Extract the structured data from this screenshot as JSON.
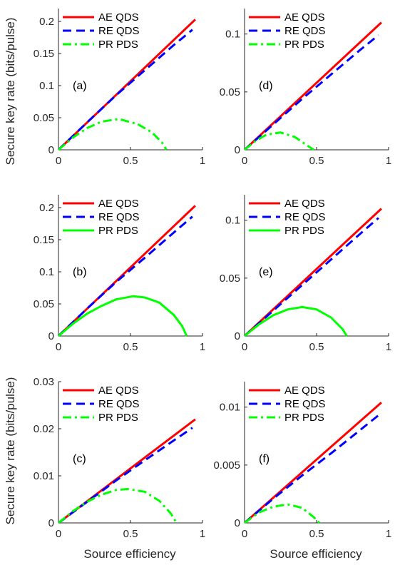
{
  "ylabel": "Secure key rate (bits/pulse)",
  "xlabel": "Source efficiency",
  "legend": [
    "AE QDS",
    "RE QDS",
    "PR PDS"
  ],
  "colors": {
    "AE QDS": "#ff0000",
    "RE QDS": "#0000ff",
    "PR PDS": "#00ff00"
  },
  "chart_data": [
    {
      "type": "line",
      "panel_label": "(a)",
      "xlim": [
        0,
        1
      ],
      "ylim": [
        0,
        0.22
      ],
      "xticks": [
        "0",
        "0.5",
        "1"
      ],
      "yticks": [
        "0",
        "0.05",
        "0.1",
        "0.15",
        "0.2"
      ],
      "yticks_values": [
        0,
        0.05,
        0.1,
        0.15,
        0.2
      ],
      "legend_position": "top-left",
      "series": [
        {
          "name": "AE QDS",
          "style": "solid",
          "x": [
            0,
            0.95
          ],
          "y": [
            0,
            0.203
          ]
        },
        {
          "name": "RE QDS",
          "style": "dashed",
          "x": [
            0,
            0.2,
            0.4,
            0.6,
            0.8,
            0.93
          ],
          "y": [
            0,
            0.043,
            0.085,
            0.124,
            0.163,
            0.187
          ]
        },
        {
          "name": "PR PDS",
          "style": "dashdot",
          "x": [
            0,
            0.1,
            0.2,
            0.3,
            0.42,
            0.55,
            0.65,
            0.72,
            0.75
          ],
          "y": [
            0,
            0.019,
            0.034,
            0.044,
            0.048,
            0.04,
            0.027,
            0.011,
            0
          ]
        }
      ]
    },
    {
      "type": "line",
      "panel_label": "(d)",
      "xlim": [
        0,
        1
      ],
      "ylim": [
        0,
        0.122
      ],
      "xticks": [
        "0",
        "0.5",
        "1"
      ],
      "yticks": [
        "0",
        "0.05",
        "0.1"
      ],
      "yticks_values": [
        0,
        0.05,
        0.1
      ],
      "legend_position": "top-left",
      "series": [
        {
          "name": "AE QDS",
          "style": "solid",
          "x": [
            0,
            0.95
          ],
          "y": [
            0,
            0.11
          ]
        },
        {
          "name": "RE QDS",
          "style": "dashed",
          "x": [
            0,
            0.2,
            0.4,
            0.6,
            0.8,
            0.93
          ],
          "y": [
            0,
            0.022,
            0.044,
            0.065,
            0.086,
            0.099
          ]
        },
        {
          "name": "PR PDS",
          "style": "dashdot",
          "x": [
            0,
            0.08,
            0.15,
            0.25,
            0.35,
            0.42,
            0.48
          ],
          "y": [
            0,
            0.008,
            0.013,
            0.015,
            0.011,
            0.005,
            0
          ]
        }
      ]
    },
    {
      "type": "line",
      "panel_label": "(b)",
      "xlim": [
        0,
        1
      ],
      "ylim": [
        0,
        0.22
      ],
      "xticks": [
        "0",
        "0.5",
        "1"
      ],
      "yticks": [
        "0",
        "0.05",
        "0.1",
        "0.15",
        "0.2"
      ],
      "yticks_values": [
        0,
        0.05,
        0.1,
        0.15,
        0.2
      ],
      "legend_position": "top-left",
      "series": [
        {
          "name": "AE QDS",
          "style": "solid",
          "x": [
            0,
            0.95
          ],
          "y": [
            0,
            0.203
          ]
        },
        {
          "name": "RE QDS",
          "style": "dashed",
          "x": [
            0,
            0.2,
            0.4,
            0.6,
            0.8,
            0.93
          ],
          "y": [
            0,
            0.043,
            0.084,
            0.122,
            0.161,
            0.186
          ]
        },
        {
          "name": "PR PDS",
          "style": "solid",
          "x": [
            0,
            0.1,
            0.2,
            0.3,
            0.4,
            0.52,
            0.6,
            0.7,
            0.8,
            0.86,
            0.89
          ],
          "y": [
            0,
            0.019,
            0.035,
            0.047,
            0.057,
            0.062,
            0.06,
            0.052,
            0.033,
            0.015,
            0
          ]
        }
      ]
    },
    {
      "type": "line",
      "panel_label": "(e)",
      "xlim": [
        0,
        1
      ],
      "ylim": [
        0,
        0.122
      ],
      "xticks": [
        "0",
        "0.5",
        "1"
      ],
      "yticks": [
        "0",
        "0.05",
        "0.1"
      ],
      "yticks_values": [
        0,
        0.05,
        0.1
      ],
      "legend_position": "top-left",
      "series": [
        {
          "name": "AE QDS",
          "style": "solid",
          "x": [
            0,
            0.95
          ],
          "y": [
            0,
            0.11
          ]
        },
        {
          "name": "RE QDS",
          "style": "dashed",
          "x": [
            0,
            0.2,
            0.4,
            0.6,
            0.8,
            0.93
          ],
          "y": [
            0,
            0.022,
            0.044,
            0.066,
            0.088,
            0.102
          ]
        },
        {
          "name": "PR PDS",
          "style": "solid",
          "x": [
            0,
            0.1,
            0.2,
            0.3,
            0.4,
            0.5,
            0.6,
            0.68,
            0.71
          ],
          "y": [
            0,
            0.01,
            0.018,
            0.023,
            0.025,
            0.023,
            0.016,
            0.006,
            0
          ]
        }
      ]
    },
    {
      "type": "line",
      "panel_label": "(c)",
      "xlim": [
        0,
        1
      ],
      "ylim": [
        0,
        0.03
      ],
      "xticks": [
        "0",
        "0.5",
        "1"
      ],
      "yticks": [
        "0",
        "0.01",
        "0.02",
        "0.03"
      ],
      "yticks_values": [
        0,
        0.01,
        0.02,
        0.03
      ],
      "legend_position": "top-left",
      "series": [
        {
          "name": "AE QDS",
          "style": "solid",
          "x": [
            0,
            0.95
          ],
          "y": [
            0,
            0.022
          ]
        },
        {
          "name": "RE QDS",
          "style": "dashed",
          "x": [
            0,
            0.2,
            0.4,
            0.6,
            0.8,
            0.93
          ],
          "y": [
            0,
            0.0045,
            0.009,
            0.0133,
            0.0175,
            0.0202
          ]
        },
        {
          "name": "PR PDS",
          "style": "dashdot",
          "x": [
            0,
            0.1,
            0.2,
            0.3,
            0.4,
            0.48,
            0.6,
            0.7,
            0.78,
            0.82
          ],
          "y": [
            0,
            0.0025,
            0.0045,
            0.006,
            0.007,
            0.0072,
            0.0066,
            0.0047,
            0.002,
            0
          ]
        }
      ]
    },
    {
      "type": "line",
      "panel_label": "(f)",
      "xlim": [
        0,
        1
      ],
      "ylim": [
        0,
        0.0122
      ],
      "xticks": [
        "0",
        "0.5",
        "1"
      ],
      "yticks": [
        "0",
        "0.005",
        "0.01"
      ],
      "yticks_values": [
        0,
        0.005,
        0.01
      ],
      "legend_position": "top-left",
      "series": [
        {
          "name": "AE QDS",
          "style": "solid",
          "x": [
            0,
            0.95
          ],
          "y": [
            0,
            0.0104
          ]
        },
        {
          "name": "RE QDS",
          "style": "dashed",
          "x": [
            0,
            0.2,
            0.4,
            0.6,
            0.8,
            0.93
          ],
          "y": [
            0,
            0.0021,
            0.0041,
            0.006,
            0.008,
            0.0093
          ]
        },
        {
          "name": "PR PDS",
          "style": "dashdot",
          "x": [
            0,
            0.1,
            0.2,
            0.3,
            0.4,
            0.48,
            0.52
          ],
          "y": [
            0,
            0.0009,
            0.0014,
            0.0016,
            0.0013,
            0.0005,
            0
          ]
        }
      ]
    }
  ]
}
